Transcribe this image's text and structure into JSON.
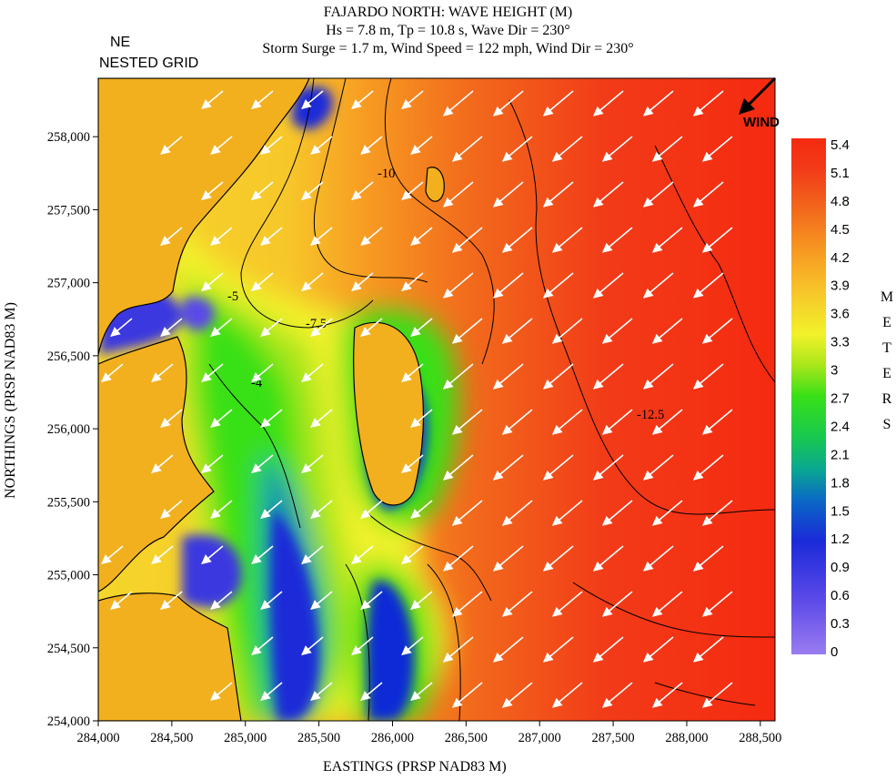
{
  "chart_data": {
    "type": "heatmap",
    "title_lines": [
      "FAJARDO NORTH: WAVE HEIGHT (M)",
      "Hs = 7.8 m, Tp = 10.8 s, Wave Dir = 230°",
      "Storm Surge = 1.7 m, Wind Speed = 122 mph, Wind Dir = 230°"
    ],
    "grid_label_lines": [
      "NE",
      "NESTED GRID"
    ],
    "xlabel": "EASTINGS (PRSP NAD83 M)",
    "ylabel": "NORTHINGS (PRSP NAD83 M)",
    "xlim": [
      284000,
      288600
    ],
    "ylim": [
      254000,
      258400
    ],
    "xticks": [
      284000,
      284500,
      285000,
      285500,
      286000,
      286500,
      287000,
      287500,
      288000,
      288500
    ],
    "xtick_labels": [
      "284,000",
      "284,500",
      "285,000",
      "285,500",
      "286,000",
      "286,500",
      "287,000",
      "287,500",
      "288,000",
      "288,500"
    ],
    "yticks": [
      254000,
      254500,
      255000,
      255500,
      256000,
      256500,
      257000,
      257500,
      258000
    ],
    "ytick_labels": [
      "254,000",
      "254,500",
      "255,000",
      "255,500",
      "256,000",
      "256,500",
      "257,000",
      "257,500",
      "258,000"
    ],
    "colorbar": {
      "values": [
        0,
        0.3,
        0.6,
        0.9,
        1.2,
        1.5,
        1.8,
        2.1,
        2.4,
        2.7,
        3,
        3.3,
        3.6,
        3.9,
        4.2,
        4.5,
        4.8,
        5.1,
        5.4
      ],
      "labels": [
        "0",
        "0.3",
        "0.6",
        "0.9",
        "1.2",
        "1.5",
        "1.8",
        "2.1",
        "2.4",
        "2.7",
        "3",
        "3.3",
        "3.6",
        "3.9",
        "4.2",
        "4.5",
        "4.8",
        "5.1",
        "5.4"
      ],
      "title_letters": [
        "M",
        "E",
        "T",
        "E",
        "R",
        "S"
      ]
    },
    "contour_labels": [
      "-4",
      "-5",
      "-7.5",
      "-10",
      "-12.5"
    ],
    "wind_label": "WIND",
    "wind_direction_deg": 230,
    "wave_direction_deg": 230,
    "colors": {
      "land": "#f2b01e",
      "scale": [
        "#9a7cf0",
        "#3a38e0",
        "#0a2ad6",
        "#0a8fb5",
        "#18c850",
        "#38e018",
        "#a8e61a",
        "#f2f22a",
        "#f7c72a",
        "#f79a22",
        "#f26a1c",
        "#f23b18",
        "#f52a10"
      ],
      "arrows": "#ffffff",
      "contours": "#000000"
    }
  }
}
